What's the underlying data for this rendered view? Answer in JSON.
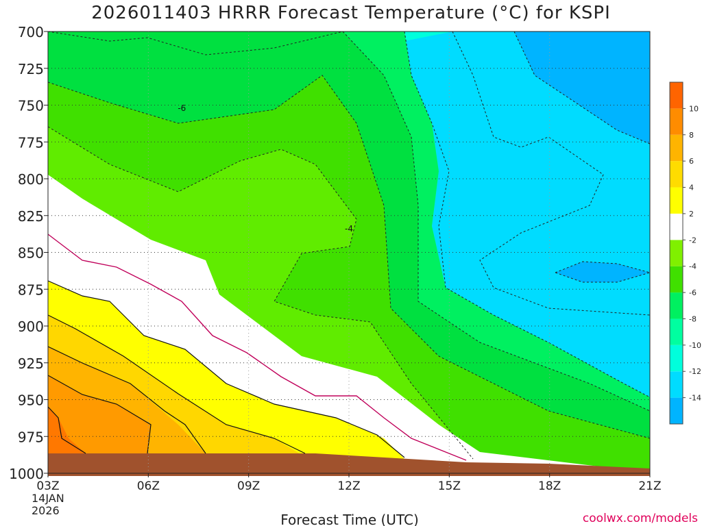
{
  "chart_data": {
    "type": "heatmap",
    "title": "2026011403 HRRR Forecast Temperature (°C) for KSPI",
    "xlabel": "Forecast Time (UTC)",
    "ylabel": "",
    "credit": "coolwx.com/models",
    "x_ticks": [
      "03Z",
      "06Z",
      "09Z",
      "12Z",
      "15Z",
      "18Z",
      "21Z"
    ],
    "x_first_tick_sub": [
      "14JAN",
      "2026"
    ],
    "y_ticks": [
      "700",
      "725",
      "750",
      "775",
      "800",
      "825",
      "850",
      "875",
      "900",
      "925",
      "950",
      "975",
      "1000"
    ],
    "ylim": [
      1000,
      700
    ],
    "grid": true,
    "colorbar": {
      "levels": [
        -16,
        -14,
        -12,
        -10,
        -8,
        -6,
        -4,
        -2,
        2,
        4,
        6,
        8,
        10,
        12
      ],
      "labels": [
        "-14",
        "-12",
        "-10",
        "-8",
        "-6",
        "-4",
        "-2",
        "2",
        "4",
        "6",
        "8",
        "10"
      ],
      "colors": [
        "#00b4ff",
        "#00dcff",
        "#00ffdc",
        "#00ffa0",
        "#00f060",
        "#40e000",
        "#80f000",
        "#ffffff",
        "#ffff00",
        "#ffdc00",
        "#ffb400",
        "#ff8c00",
        "#ff6400"
      ]
    },
    "contour_labels": [
      {
        "text": "-6",
        "x": "06Z+1",
        "p": 752
      },
      {
        "text": "-4",
        "x": "12Z",
        "p": 834
      }
    ],
    "ground_color": "#a0522d"
  }
}
